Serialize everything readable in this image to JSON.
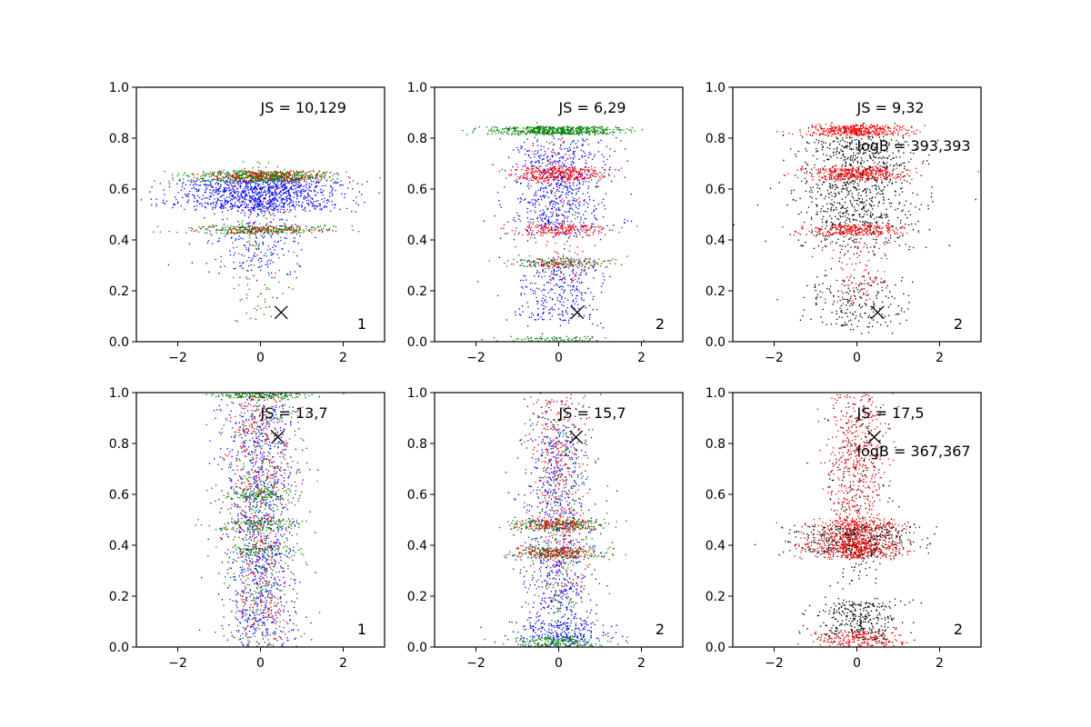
{
  "colors": {
    "blue": "#0000ff",
    "green": "#008000",
    "red": "#ff0000",
    "black": "#000000"
  },
  "chart_data": [
    {
      "type": "scatter",
      "panel": "row1-col1",
      "xlim": [
        -3,
        3
      ],
      "ylim": [
        0,
        1
      ],
      "xticks": [
        -2,
        0,
        2
      ],
      "yticks": [
        0.0,
        0.2,
        0.4,
        0.6,
        0.8,
        1.0
      ],
      "xtick_labels": [
        "−2",
        "0",
        "2"
      ],
      "ytick_labels": [
        "0.0",
        "0.2",
        "0.4",
        "0.6",
        "0.8",
        "1.0"
      ],
      "annotations": [
        "JS = 10,129"
      ],
      "corner_label": "1",
      "marker": {
        "x": 0.5,
        "y": 0.115
      },
      "series": [
        {
          "name": "blue",
          "color": "blue",
          "count": 1300,
          "bands": [
            {
              "center": 0.58,
              "width": 0.06,
              "x_spread": 1.0,
              "weight": 0.75
            },
            {
              "center": 0.45,
              "width": 0.18,
              "x_spread": 0.55,
              "weight": 0.25
            }
          ]
        },
        {
          "name": "green",
          "color": "green",
          "count": 900,
          "bands": [
            {
              "center": 0.65,
              "width": 0.02,
              "x_spread": 0.8,
              "weight": 0.6
            },
            {
              "center": 0.44,
              "width": 0.015,
              "x_spread": 0.8,
              "weight": 0.3
            },
            {
              "center": 0.4,
              "width": 0.3,
              "x_spread": 0.4,
              "weight": 0.1
            }
          ]
        },
        {
          "name": "red",
          "color": "red",
          "count": 350,
          "bands": [
            {
              "center": 0.65,
              "width": 0.02,
              "x_spread": 0.8,
              "weight": 0.6
            },
            {
              "center": 0.44,
              "width": 0.015,
              "x_spread": 0.8,
              "weight": 0.25
            },
            {
              "center": 0.4,
              "width": 0.3,
              "x_spread": 0.4,
              "weight": 0.15
            }
          ]
        }
      ]
    },
    {
      "type": "scatter",
      "panel": "row1-col2",
      "xlim": [
        -3,
        3
      ],
      "ylim": [
        0,
        1
      ],
      "xticks": [
        -2,
        0,
        2
      ],
      "yticks": [
        0.0,
        0.2,
        0.4,
        0.6,
        0.8,
        1.0
      ],
      "xtick_labels": [
        "−2",
        "0",
        "2"
      ],
      "ytick_labels": [
        "0.0",
        "0.2",
        "0.4",
        "0.6",
        "0.8",
        "1.0"
      ],
      "annotations": [
        "JS = 6,29"
      ],
      "corner_label": "2",
      "marker": {
        "x": 0.45,
        "y": 0.115
      },
      "series": [
        {
          "name": "blue",
          "color": "blue",
          "count": 1000,
          "bands": [
            {
              "center": 0.6,
              "width": 0.18,
              "x_spread": 0.6,
              "weight": 0.7
            },
            {
              "center": 0.2,
              "width": 0.12,
              "x_spread": 0.55,
              "weight": 0.3
            }
          ]
        },
        {
          "name": "green",
          "color": "green",
          "count": 850,
          "bands": [
            {
              "center": 0.83,
              "width": 0.015,
              "x_spread": 0.75,
              "weight": 0.65
            },
            {
              "center": 0.31,
              "width": 0.015,
              "x_spread": 0.6,
              "weight": 0.15
            },
            {
              "center": 0.01,
              "width": 0.01,
              "x_spread": 0.7,
              "weight": 0.1
            },
            {
              "center": 0.5,
              "width": 0.3,
              "x_spread": 0.45,
              "weight": 0.1
            }
          ]
        },
        {
          "name": "red",
          "color": "red",
          "count": 700,
          "bands": [
            {
              "center": 0.66,
              "width": 0.025,
              "x_spread": 0.6,
              "weight": 0.45
            },
            {
              "center": 0.44,
              "width": 0.02,
              "x_spread": 0.6,
              "weight": 0.25
            },
            {
              "center": 0.31,
              "width": 0.02,
              "x_spread": 0.55,
              "weight": 0.1
            },
            {
              "center": 0.5,
              "width": 0.3,
              "x_spread": 0.4,
              "weight": 0.2
            }
          ]
        }
      ]
    },
    {
      "type": "scatter",
      "panel": "row1-col3",
      "xlim": [
        -3,
        3
      ],
      "ylim": [
        0,
        1
      ],
      "xticks": [
        -2,
        0,
        2
      ],
      "yticks": [
        0.0,
        0.2,
        0.4,
        0.6,
        0.8,
        1.0
      ],
      "xtick_labels": [
        "−2",
        "0",
        "2"
      ],
      "ytick_labels": [
        "0.0",
        "0.2",
        "0.4",
        "0.6",
        "0.8",
        "1.0"
      ],
      "annotations": [
        "JS = 9,32",
        "logB = 393,393"
      ],
      "corner_label": "2",
      "marker": {
        "x": 0.5,
        "y": 0.115
      },
      "series": [
        {
          "name": "black",
          "color": "black",
          "count": 1200,
          "bands": [
            {
              "center": 0.6,
              "width": 0.22,
              "x_spread": 0.7,
              "weight": 0.8
            },
            {
              "center": 0.15,
              "width": 0.1,
              "x_spread": 0.55,
              "weight": 0.2
            }
          ]
        },
        {
          "name": "red",
          "color": "red",
          "count": 1100,
          "bands": [
            {
              "center": 0.83,
              "width": 0.02,
              "x_spread": 0.6,
              "weight": 0.35
            },
            {
              "center": 0.66,
              "width": 0.025,
              "x_spread": 0.6,
              "weight": 0.35
            },
            {
              "center": 0.44,
              "width": 0.02,
              "x_spread": 0.6,
              "weight": 0.2
            },
            {
              "center": 0.3,
              "width": 0.15,
              "x_spread": 0.4,
              "weight": 0.1
            }
          ]
        }
      ]
    },
    {
      "type": "scatter",
      "panel": "row2-col1",
      "xlim": [
        -3,
        3
      ],
      "ylim": [
        0,
        1
      ],
      "xticks": [
        -2,
        0,
        2
      ],
      "yticks": [
        0.0,
        0.2,
        0.4,
        0.6,
        0.8,
        1.0
      ],
      "xtick_labels": [
        "−2",
        "0",
        "2"
      ],
      "ytick_labels": [
        "0.0",
        "0.2",
        "0.4",
        "0.6",
        "0.8",
        "1.0"
      ],
      "annotations": [
        "JS = 13,7"
      ],
      "corner_label": "1",
      "marker": {
        "x": 0.42,
        "y": 0.825
      },
      "series": [
        {
          "name": "blue",
          "color": "blue",
          "count": 1100,
          "bands": [
            {
              "center": 0.5,
              "width": 0.5,
              "x_spread": 0.45,
              "weight": 1.0
            }
          ]
        },
        {
          "name": "green",
          "color": "green",
          "count": 900,
          "bands": [
            {
              "center": 0.99,
              "width": 0.01,
              "x_spread": 0.6,
              "weight": 0.15
            },
            {
              "center": 0.6,
              "width": 0.02,
              "x_spread": 0.5,
              "weight": 0.15
            },
            {
              "center": 0.48,
              "width": 0.02,
              "x_spread": 0.5,
              "weight": 0.15
            },
            {
              "center": 0.38,
              "width": 0.02,
              "x_spread": 0.5,
              "weight": 0.1
            },
            {
              "center": 0.5,
              "width": 0.5,
              "x_spread": 0.4,
              "weight": 0.45
            }
          ]
        },
        {
          "name": "red",
          "color": "red",
          "count": 550,
          "bands": [
            {
              "center": 0.5,
              "width": 0.5,
              "x_spread": 0.4,
              "weight": 1.0
            }
          ]
        }
      ]
    },
    {
      "type": "scatter",
      "panel": "row2-col2",
      "xlim": [
        -3,
        3
      ],
      "ylim": [
        0,
        1
      ],
      "xticks": [
        -2,
        0,
        2
      ],
      "yticks": [
        0.0,
        0.2,
        0.4,
        0.6,
        0.8,
        1.0
      ],
      "xtick_labels": [
        "−2",
        "0",
        "2"
      ],
      "ytick_labels": [
        "0.0",
        "0.2",
        "0.4",
        "0.6",
        "0.8",
        "1.0"
      ],
      "annotations": [
        "JS = 15,7"
      ],
      "corner_label": "2",
      "marker": {
        "x": 0.42,
        "y": 0.825
      },
      "series": [
        {
          "name": "blue",
          "color": "blue",
          "count": 1000,
          "bands": [
            {
              "center": 0.45,
              "width": 0.45,
              "x_spread": 0.45,
              "weight": 0.8
            },
            {
              "center": 0.05,
              "width": 0.05,
              "x_spread": 0.6,
              "weight": 0.2
            }
          ]
        },
        {
          "name": "green",
          "color": "green",
          "count": 850,
          "bands": [
            {
              "center": 0.48,
              "width": 0.02,
              "x_spread": 0.55,
              "weight": 0.25
            },
            {
              "center": 0.37,
              "width": 0.02,
              "x_spread": 0.55,
              "weight": 0.25
            },
            {
              "center": 0.02,
              "width": 0.02,
              "x_spread": 0.6,
              "weight": 0.2
            },
            {
              "center": 0.5,
              "width": 0.45,
              "x_spread": 0.4,
              "weight": 0.3
            }
          ]
        },
        {
          "name": "red",
          "color": "red",
          "count": 650,
          "bands": [
            {
              "center": 0.48,
              "width": 0.02,
              "x_spread": 0.55,
              "weight": 0.2
            },
            {
              "center": 0.37,
              "width": 0.02,
              "x_spread": 0.55,
              "weight": 0.2
            },
            {
              "center": 0.6,
              "width": 0.4,
              "x_spread": 0.35,
              "weight": 0.6
            }
          ]
        }
      ]
    },
    {
      "type": "scatter",
      "panel": "row2-col3",
      "xlim": [
        -3,
        3
      ],
      "ylim": [
        0,
        1
      ],
      "xticks": [
        -2,
        0,
        2
      ],
      "yticks": [
        0.0,
        0.2,
        0.4,
        0.6,
        0.8,
        1.0
      ],
      "xtick_labels": [
        "−2",
        "0",
        "2"
      ],
      "ytick_labels": [
        "0.0",
        "0.2",
        "0.4",
        "0.6",
        "0.8",
        "1.0"
      ],
      "annotations": [
        "JS = 17,5",
        "logB = 367,367"
      ],
      "corner_label": "2",
      "marker": {
        "x": 0.42,
        "y": 0.825
      },
      "series": [
        {
          "name": "black",
          "color": "black",
          "count": 1100,
          "bands": [
            {
              "center": 0.42,
              "width": 0.06,
              "x_spread": 0.75,
              "weight": 0.45
            },
            {
              "center": 0.1,
              "width": 0.08,
              "x_spread": 0.5,
              "weight": 0.3
            },
            {
              "center": 0.6,
              "width": 0.35,
              "x_spread": 0.4,
              "weight": 0.25
            }
          ]
        },
        {
          "name": "red",
          "color": "red",
          "count": 1300,
          "bands": [
            {
              "center": 0.45,
              "width": 0.05,
              "x_spread": 0.6,
              "weight": 0.25
            },
            {
              "center": 0.38,
              "width": 0.03,
              "x_spread": 0.6,
              "weight": 0.2
            },
            {
              "center": 0.03,
              "width": 0.03,
              "x_spread": 0.5,
              "weight": 0.15
            },
            {
              "center": 0.7,
              "width": 0.3,
              "x_spread": 0.35,
              "weight": 0.4
            }
          ]
        }
      ]
    }
  ]
}
